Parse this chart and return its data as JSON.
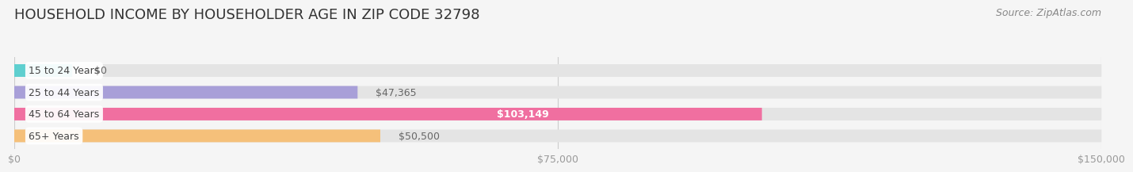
{
  "title": "HOUSEHOLD INCOME BY HOUSEHOLDER AGE IN ZIP CODE 32798",
  "source": "Source: ZipAtlas.com",
  "categories": [
    "15 to 24 Years",
    "25 to 44 Years",
    "45 to 64 Years",
    "65+ Years"
  ],
  "values": [
    0,
    47365,
    103149,
    50500
  ],
  "labels": [
    "$0",
    "$47,365",
    "$103,149",
    "$50,500"
  ],
  "bar_colors": [
    "#5ecfcf",
    "#a89fd8",
    "#f06fa0",
    "#f5c07a"
  ],
  "background_color": "#f5f5f5",
  "bar_bg_color": "#e4e4e4",
  "xlim": [
    0,
    150000
  ],
  "xticks": [
    0,
    75000,
    150000
  ],
  "xtick_labels": [
    "$0",
    "$75,000",
    "$150,000"
  ],
  "title_fontsize": 13,
  "label_fontsize": 9,
  "source_fontsize": 9,
  "bar_height": 0.58,
  "fig_width": 14.06,
  "fig_height": 2.33
}
